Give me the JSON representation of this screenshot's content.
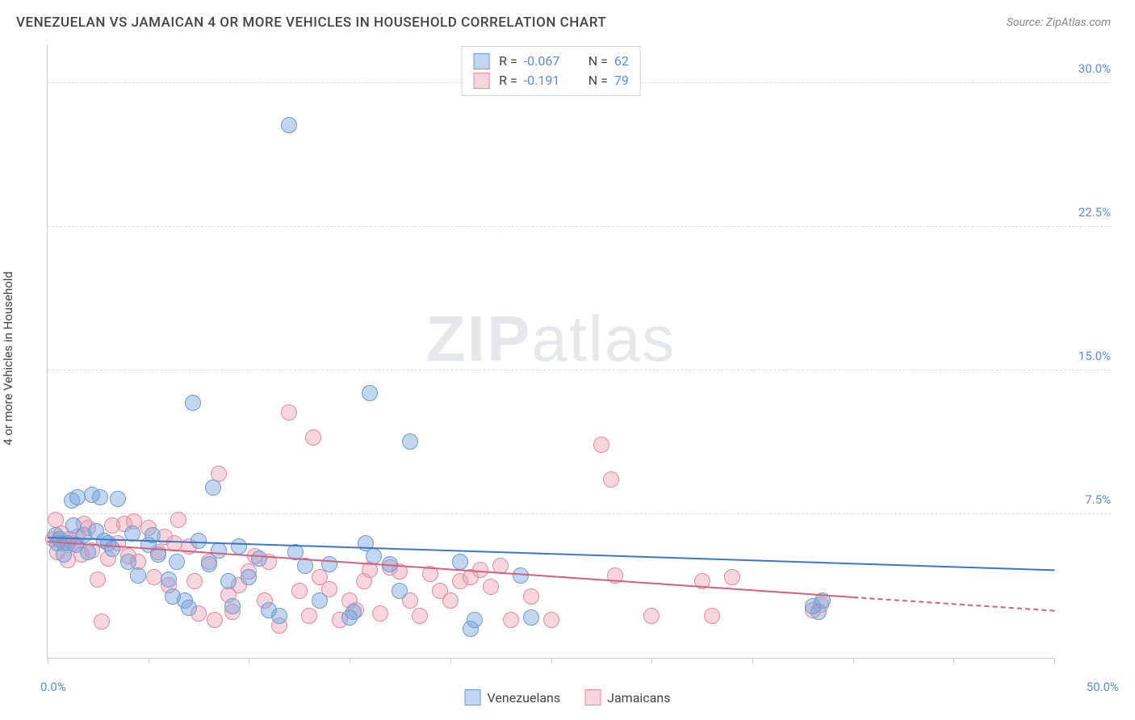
{
  "header": {
    "title": "VENEZUELAN VS JAMAICAN 4 OR MORE VEHICLES IN HOUSEHOLD CORRELATION CHART",
    "source": "Source: ZipAtlas.com"
  },
  "axes": {
    "ylabel": "4 or more Vehicles in Household",
    "xlim": [
      0,
      50
    ],
    "ylim": [
      0,
      32
    ],
    "yticks": [
      7.5,
      15.0,
      22.5,
      30.0
    ],
    "ytick_labels": [
      "7.5%",
      "15.0%",
      "22.5%",
      "30.0%"
    ],
    "ytick_color": "#5b8dd6",
    "xticks": [
      0,
      5,
      10,
      15,
      20,
      25,
      30,
      35,
      40,
      45,
      50
    ],
    "xlabel_min": "0.0%",
    "xlabel_max": "50.0%",
    "grid_color": "#dddddd",
    "axis_color": "#cccccc"
  },
  "watermark": {
    "part1": "ZIP",
    "part2": "atlas"
  },
  "series": {
    "venezuelans": {
      "label": "Venezuelans",
      "color_fill": "rgba(120,165,220,0.45)",
      "color_stroke": "#6a9cd4",
      "r_value": "-0.067",
      "n_value": "62",
      "trend": {
        "x0": 0,
        "y0": 6.3,
        "x1": 50,
        "y1": 4.6,
        "dash_from_x": 50,
        "color": "#3b78c9"
      },
      "points": [
        [
          0.4,
          6.4
        ],
        [
          0.5,
          6.0
        ],
        [
          0.6,
          6.2
        ],
        [
          0.8,
          5.4
        ],
        [
          1.0,
          6.0
        ],
        [
          1.2,
          8.2
        ],
        [
          1.3,
          6.9
        ],
        [
          1.4,
          5.9
        ],
        [
          1.5,
          8.4
        ],
        [
          1.8,
          6.4
        ],
        [
          2.0,
          5.5
        ],
        [
          2.2,
          8.5
        ],
        [
          2.4,
          6.6
        ],
        [
          2.6,
          8.4
        ],
        [
          2.8,
          6.1
        ],
        [
          3.0,
          6.0
        ],
        [
          3.2,
          5.7
        ],
        [
          3.5,
          8.3
        ],
        [
          4.0,
          5.0
        ],
        [
          4.2,
          6.5
        ],
        [
          4.5,
          4.3
        ],
        [
          5.0,
          5.9
        ],
        [
          5.2,
          6.4
        ],
        [
          5.5,
          5.4
        ],
        [
          6.0,
          4.1
        ],
        [
          6.2,
          3.2
        ],
        [
          6.4,
          5.0
        ],
        [
          6.8,
          3.0
        ],
        [
          7.0,
          2.6
        ],
        [
          7.2,
          13.3
        ],
        [
          7.5,
          6.1
        ],
        [
          8.0,
          4.9
        ],
        [
          8.2,
          8.9
        ],
        [
          8.5,
          5.6
        ],
        [
          9.0,
          4.0
        ],
        [
          9.2,
          2.7
        ],
        [
          9.5,
          5.8
        ],
        [
          10.0,
          4.2
        ],
        [
          10.5,
          5.2
        ],
        [
          11.0,
          2.5
        ],
        [
          11.5,
          2.2
        ],
        [
          12.0,
          27.8
        ],
        [
          12.3,
          5.5
        ],
        [
          12.8,
          4.8
        ],
        [
          13.5,
          3.0
        ],
        [
          14.0,
          4.9
        ],
        [
          15.0,
          2.1
        ],
        [
          15.2,
          2.4
        ],
        [
          15.8,
          6.0
        ],
        [
          16.0,
          13.8
        ],
        [
          16.2,
          5.3
        ],
        [
          17.0,
          4.9
        ],
        [
          17.5,
          3.5
        ],
        [
          18.0,
          11.3
        ],
        [
          20.5,
          5.0
        ],
        [
          21.0,
          1.5
        ],
        [
          21.2,
          2.0
        ],
        [
          23.5,
          4.3
        ],
        [
          24.0,
          2.1
        ],
        [
          38.0,
          2.7
        ],
        [
          38.3,
          2.4
        ],
        [
          38.5,
          3.0
        ]
      ]
    },
    "jamaicans": {
      "label": "Jamaicans",
      "color_fill": "rgba(235,150,170,0.40)",
      "color_stroke": "#e28ba0",
      "r_value": "-0.191",
      "n_value": "79",
      "trend": {
        "x0": 0,
        "y0": 6.1,
        "x1": 40,
        "y1": 3.2,
        "dash_from_x": 40,
        "dash_to_x": 50,
        "dash_to_y": 2.5,
        "color": "#d5607d"
      },
      "points": [
        [
          0.3,
          6.2
        ],
        [
          0.4,
          7.2
        ],
        [
          0.5,
          5.5
        ],
        [
          0.7,
          6.5
        ],
        [
          0.8,
          6.0
        ],
        [
          1.0,
          5.1
        ],
        [
          1.1,
          6.2
        ],
        [
          1.3,
          6.0
        ],
        [
          1.5,
          6.3
        ],
        [
          1.7,
          5.4
        ],
        [
          1.8,
          7.0
        ],
        [
          2.0,
          6.8
        ],
        [
          2.2,
          5.6
        ],
        [
          2.5,
          4.1
        ],
        [
          2.7,
          1.9
        ],
        [
          3.0,
          5.2
        ],
        [
          3.2,
          6.9
        ],
        [
          3.5,
          6.0
        ],
        [
          3.8,
          7.0
        ],
        [
          4.0,
          5.3
        ],
        [
          4.3,
          7.1
        ],
        [
          4.5,
          5.0
        ],
        [
          5.0,
          6.8
        ],
        [
          5.3,
          4.2
        ],
        [
          5.5,
          5.5
        ],
        [
          5.8,
          6.3
        ],
        [
          6.0,
          3.8
        ],
        [
          6.3,
          6.0
        ],
        [
          6.5,
          7.2
        ],
        [
          7.0,
          5.8
        ],
        [
          7.3,
          4.0
        ],
        [
          7.5,
          2.3
        ],
        [
          8.0,
          5.0
        ],
        [
          8.3,
          2.0
        ],
        [
          8.5,
          9.6
        ],
        [
          9.0,
          3.3
        ],
        [
          9.2,
          2.4
        ],
        [
          9.5,
          3.8
        ],
        [
          10.0,
          4.5
        ],
        [
          10.3,
          5.3
        ],
        [
          10.8,
          3.0
        ],
        [
          11.0,
          5.0
        ],
        [
          11.5,
          1.7
        ],
        [
          12.0,
          12.8
        ],
        [
          12.5,
          3.5
        ],
        [
          13.0,
          2.2
        ],
        [
          13.2,
          11.5
        ],
        [
          13.5,
          4.2
        ],
        [
          14.0,
          3.6
        ],
        [
          14.5,
          2.0
        ],
        [
          15.0,
          3.0
        ],
        [
          15.3,
          2.5
        ],
        [
          15.7,
          4.0
        ],
        [
          16.0,
          4.6
        ],
        [
          16.5,
          2.3
        ],
        [
          17.0,
          4.7
        ],
        [
          17.5,
          4.5
        ],
        [
          18.0,
          3.0
        ],
        [
          18.5,
          2.2
        ],
        [
          19.0,
          4.4
        ],
        [
          19.5,
          3.5
        ],
        [
          20.0,
          3.0
        ],
        [
          20.5,
          4.0
        ],
        [
          21.0,
          4.2
        ],
        [
          21.5,
          4.6
        ],
        [
          22.0,
          3.7
        ],
        [
          22.5,
          4.8
        ],
        [
          23.0,
          2.0
        ],
        [
          24.0,
          3.2
        ],
        [
          25.0,
          2.0
        ],
        [
          27.5,
          11.1
        ],
        [
          28.0,
          9.3
        ],
        [
          28.2,
          4.3
        ],
        [
          30.0,
          2.2
        ],
        [
          32.5,
          4.0
        ],
        [
          33.0,
          2.2
        ],
        [
          34.0,
          4.2
        ],
        [
          38.0,
          2.5
        ],
        [
          38.4,
          2.8
        ]
      ]
    }
  },
  "legend_bottom": {
    "items": [
      {
        "label": "Venezuelans",
        "fill": "rgba(120,165,220,0.45)",
        "stroke": "#6a9cd4"
      },
      {
        "label": "Jamaicans",
        "fill": "rgba(235,150,170,0.40)",
        "stroke": "#e28ba0"
      }
    ]
  },
  "style": {
    "point_radius": 10,
    "background": "#ffffff"
  }
}
